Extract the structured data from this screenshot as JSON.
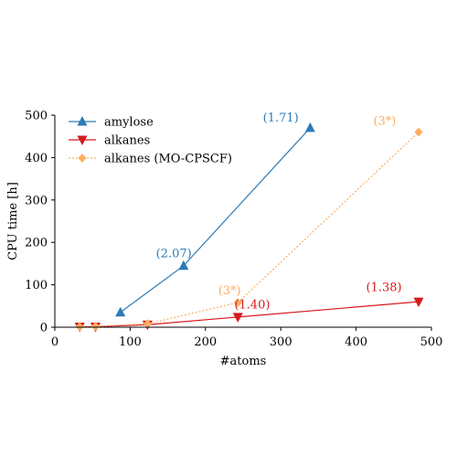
{
  "chart_data": {
    "type": "line",
    "title": "",
    "xlabel": "#atoms",
    "ylabel": "CPU time [h]",
    "xlim": [
      0,
      500
    ],
    "ylim": [
      0,
      500
    ],
    "x_ticks": [
      0,
      100,
      200,
      300,
      400,
      500
    ],
    "y_ticks": [
      0,
      100,
      200,
      300,
      400,
      500
    ],
    "x_tick_labels": [
      "0",
      "100",
      "200",
      "300",
      "400",
      "500"
    ],
    "y_tick_labels": [
      "0",
      "100",
      "200",
      "300",
      "400",
      "500"
    ],
    "grid": false,
    "legend_position": "top-left",
    "series": [
      {
        "name": "amylose",
        "color": "#2c7bb6",
        "marker": "triangle-up",
        "line_style": "solid",
        "x": [
          87,
          171,
          339
        ],
        "y": [
          35,
          145,
          470
        ]
      },
      {
        "name": "alkanes",
        "color": "#d7191c",
        "marker": "triangle-down",
        "line_style": "solid",
        "x": [
          33,
          54,
          123,
          243,
          483
        ],
        "y": [
          1,
          1,
          6,
          24,
          60
        ]
      },
      {
        "name": "alkanes (MO-CPSCF)",
        "color": "#fdae61",
        "marker": "diamond",
        "line_style": "dotted",
        "x": [
          33,
          54,
          123,
          243,
          483
        ],
        "y": [
          1,
          2,
          8,
          58,
          460
        ]
      }
    ],
    "annotations": [
      {
        "text": "(2.07)",
        "x": 158,
        "y": 165,
        "color": "#2c7bb6"
      },
      {
        "text": "(1.71)",
        "x": 300,
        "y": 485,
        "color": "#2c7bb6"
      },
      {
        "text": "(3*)",
        "x": 232,
        "y": 78,
        "color": "#fdae61"
      },
      {
        "text": "(3*)",
        "x": 438,
        "y": 477,
        "color": "#fdae61"
      },
      {
        "text": "(1.40)",
        "x": 262,
        "y": 44,
        "color": "#d7191c"
      },
      {
        "text": "(1.38)",
        "x": 437,
        "y": 85,
        "color": "#d7191c"
      }
    ]
  }
}
